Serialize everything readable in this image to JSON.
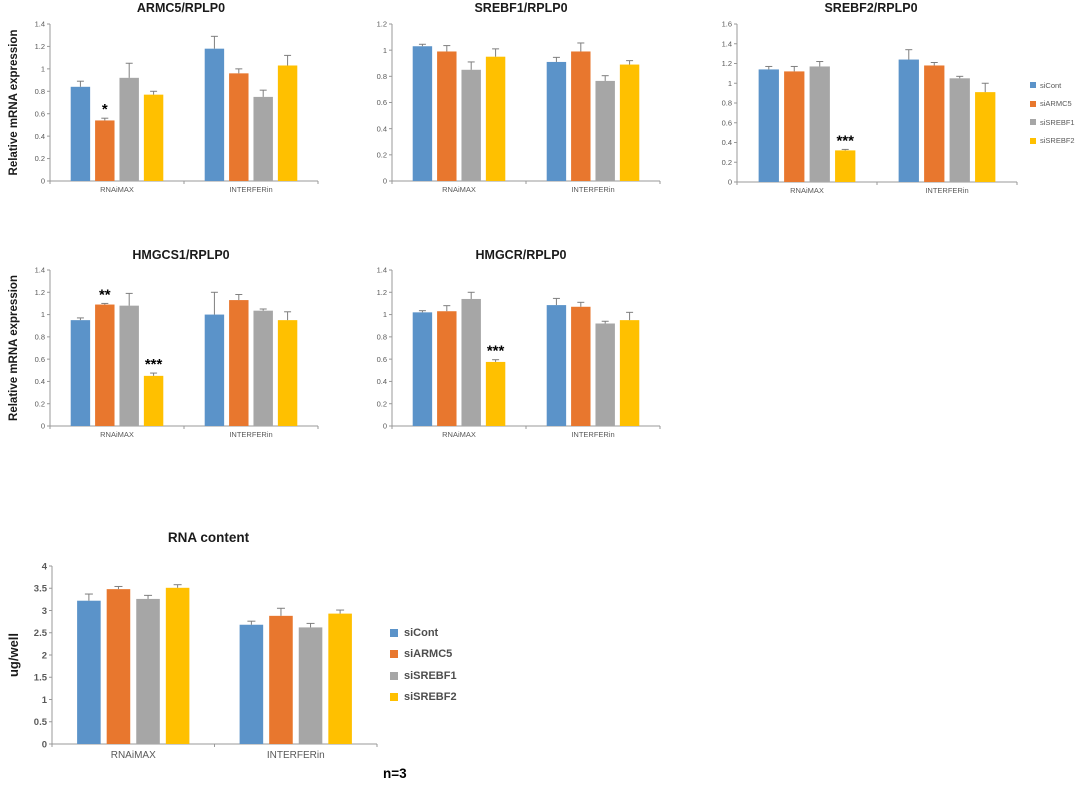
{
  "page": {
    "note": "n=3"
  },
  "colors": {
    "siCont": "#5B93C9",
    "siARMC5": "#E8772E",
    "siSREBF1": "#A6A6A6",
    "siSREBF2": "#FFC000",
    "axis": "#999999",
    "tick_text": "#595959",
    "error_bar": "#7F7F7F"
  },
  "legend_series": [
    "siCont",
    "siARMC5",
    "siSREBF1",
    "siSREBF2"
  ],
  "chart_data": [
    {
      "type": "bar",
      "title": "ARMC5/RPLP0",
      "ylabel": "Relative mRNA expression",
      "xlabel": "",
      "ylim": [
        0,
        1.4
      ],
      "yticks": [
        "0",
        "0.2",
        "0.4",
        "0.6",
        "0.8",
        "1",
        "1.2",
        "1.4"
      ],
      "categories": [
        "RNAiMAX",
        "INTERFERin"
      ],
      "grid": false,
      "legend_position": "none",
      "series": [
        {
          "name": "siCont",
          "values": [
            0.84,
            1.18
          ],
          "errors": [
            0.05,
            0.11
          ],
          "sig": [
            "",
            ""
          ]
        },
        {
          "name": "siARMC5",
          "values": [
            0.54,
            0.96
          ],
          "errors": [
            0.02,
            0.04
          ],
          "sig": [
            "*",
            ""
          ]
        },
        {
          "name": "siSREBF1",
          "values": [
            0.92,
            0.75
          ],
          "errors": [
            0.13,
            0.06
          ],
          "sig": [
            "",
            ""
          ]
        },
        {
          "name": "siSREBF2",
          "values": [
            0.77,
            1.03
          ],
          "errors": [
            0.03,
            0.09
          ],
          "sig": [
            "",
            ""
          ]
        }
      ]
    },
    {
      "type": "bar",
      "title": "SREBF1/RPLP0",
      "ylabel": "",
      "xlabel": "",
      "ylim": [
        0,
        1.2
      ],
      "yticks": [
        "0",
        "0.2",
        "0.4",
        "0.6",
        "0.8",
        "1",
        "1.2"
      ],
      "categories": [
        "RNAiMAX",
        "INTERFERin"
      ],
      "grid": false,
      "legend_position": "none",
      "series": [
        {
          "name": "siCont",
          "values": [
            1.03,
            0.91
          ],
          "errors": [
            0.015,
            0.035
          ],
          "sig": [
            "",
            ""
          ]
        },
        {
          "name": "siARMC5",
          "values": [
            0.99,
            0.99
          ],
          "errors": [
            0.045,
            0.065
          ],
          "sig": [
            "",
            ""
          ]
        },
        {
          "name": "siSREBF1",
          "values": [
            0.85,
            0.765
          ],
          "errors": [
            0.06,
            0.04
          ],
          "sig": [
            "",
            ""
          ]
        },
        {
          "name": "siSREBF2",
          "values": [
            0.95,
            0.89
          ],
          "errors": [
            0.06,
            0.03
          ],
          "sig": [
            "",
            ""
          ]
        }
      ]
    },
    {
      "type": "bar",
      "title": "SREBF2/RPLP0",
      "ylabel": "",
      "xlabel": "",
      "ylim": [
        0,
        1.6
      ],
      "yticks": [
        "0",
        "0.2",
        "0.4",
        "0.6",
        "0.8",
        "1",
        "1.2",
        "1.4",
        "1.6"
      ],
      "categories": [
        "RNAiMAX",
        "INTERFERin"
      ],
      "grid": false,
      "legend_position": "right",
      "series": [
        {
          "name": "siCont",
          "values": [
            1.14,
            1.24
          ],
          "errors": [
            0.03,
            0.1
          ],
          "sig": [
            "",
            ""
          ]
        },
        {
          "name": "siARMC5",
          "values": [
            1.12,
            1.18
          ],
          "errors": [
            0.05,
            0.03
          ],
          "sig": [
            "",
            ""
          ]
        },
        {
          "name": "siSREBF1",
          "values": [
            1.17,
            1.05
          ],
          "errors": [
            0.05,
            0.02
          ],
          "sig": [
            "",
            ""
          ]
        },
        {
          "name": "siSREBF2",
          "values": [
            0.32,
            0.91
          ],
          "errors": [
            0.01,
            0.09
          ],
          "sig": [
            "***",
            ""
          ]
        }
      ]
    },
    {
      "type": "bar",
      "title": "HMGCS1/RPLP0",
      "ylabel": "Relative mRNA expression",
      "xlabel": "",
      "ylim": [
        0,
        1.4
      ],
      "yticks": [
        "0",
        "0.2",
        "0.4",
        "0.6",
        "0.8",
        "1",
        "1.2",
        "1.4"
      ],
      "categories": [
        "RNAiMAX",
        "INTERFERin"
      ],
      "grid": false,
      "legend_position": "none",
      "series": [
        {
          "name": "siCont",
          "values": [
            0.95,
            1.0
          ],
          "errors": [
            0.02,
            0.2
          ],
          "sig": [
            "",
            ""
          ]
        },
        {
          "name": "siARMC5",
          "values": [
            1.09,
            1.13
          ],
          "errors": [
            0.01,
            0.05
          ],
          "sig": [
            "**",
            ""
          ]
        },
        {
          "name": "siSREBF1",
          "values": [
            1.08,
            1.035
          ],
          "errors": [
            0.11,
            0.015
          ],
          "sig": [
            "",
            ""
          ]
        },
        {
          "name": "siSREBF2",
          "values": [
            0.45,
            0.95
          ],
          "errors": [
            0.025,
            0.075
          ],
          "sig": [
            "***",
            ""
          ]
        }
      ]
    },
    {
      "type": "bar",
      "title": "HMGCR/RPLP0",
      "ylabel": "",
      "xlabel": "",
      "ylim": [
        0,
        1.4
      ],
      "yticks": [
        "0",
        "0.2",
        "0.4",
        "0.6",
        "0.8",
        "1",
        "1.2",
        "1.4"
      ],
      "categories": [
        "RNAiMAX",
        "INTERFERin"
      ],
      "grid": false,
      "legend_position": "none",
      "series": [
        {
          "name": "siCont",
          "values": [
            1.02,
            1.085
          ],
          "errors": [
            0.015,
            0.06
          ],
          "sig": [
            "",
            ""
          ]
        },
        {
          "name": "siARMC5",
          "values": [
            1.03,
            1.07
          ],
          "errors": [
            0.05,
            0.04
          ],
          "sig": [
            "",
            ""
          ]
        },
        {
          "name": "siSREBF1",
          "values": [
            1.14,
            0.92
          ],
          "errors": [
            0.06,
            0.02
          ],
          "sig": [
            "",
            ""
          ]
        },
        {
          "name": "siSREBF2",
          "values": [
            0.575,
            0.95
          ],
          "errors": [
            0.02,
            0.07
          ],
          "sig": [
            "***",
            ""
          ]
        }
      ]
    },
    {
      "type": "bar",
      "title": "RNA content",
      "ylabel": "ug/well",
      "xlabel": "",
      "ylim": [
        0,
        4
      ],
      "yticks": [
        "0",
        "0.5",
        "1",
        "1.5",
        "2",
        "2.5",
        "3",
        "3.5",
        "4"
      ],
      "categories": [
        "RNAiMAX",
        "INTERFERin"
      ],
      "grid": false,
      "legend_position": "right",
      "series": [
        {
          "name": "siCont",
          "values": [
            3.22,
            2.68
          ],
          "errors": [
            0.15,
            0.08
          ],
          "sig": [
            "",
            ""
          ]
        },
        {
          "name": "siARMC5",
          "values": [
            3.48,
            2.88
          ],
          "errors": [
            0.06,
            0.17
          ],
          "sig": [
            "",
            ""
          ]
        },
        {
          "name": "siSREBF1",
          "values": [
            3.26,
            2.62
          ],
          "errors": [
            0.08,
            0.09
          ],
          "sig": [
            "",
            ""
          ]
        },
        {
          "name": "siSREBF2",
          "values": [
            3.51,
            2.93
          ],
          "errors": [
            0.07,
            0.08
          ],
          "sig": [
            "",
            ""
          ]
        }
      ]
    }
  ]
}
